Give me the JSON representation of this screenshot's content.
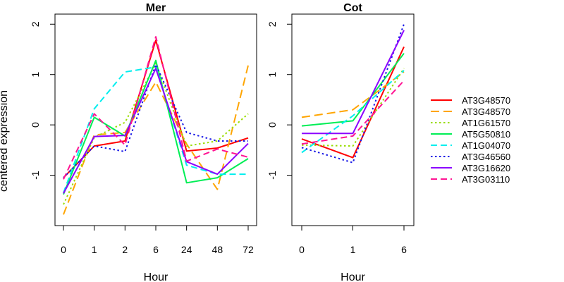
{
  "figure": {
    "ylabel": "centered expression",
    "xlabel": "Hour"
  },
  "chart_data": [
    {
      "type": "line",
      "title": "Mer",
      "categories": [
        "0",
        "1",
        "2",
        "6",
        "24",
        "48",
        "72"
      ],
      "xlabel": "Hour",
      "ylabel": "centered expression",
      "ylim": [
        -2,
        2.2
      ],
      "yticks": [
        -1,
        0,
        1,
        2
      ],
      "grid": false,
      "series": [
        {
          "name": "AT3G48570",
          "color": "#ff0000",
          "dash": "solid",
          "values": [
            -1.05,
            -0.42,
            -0.32,
            1.68,
            -0.52,
            -0.46,
            -0.26
          ]
        },
        {
          "name": "AT3G48570",
          "color": "#ffa500",
          "dash": "longdash",
          "values": [
            -1.78,
            -0.2,
            -0.15,
            0.85,
            -0.38,
            -1.28,
            1.18
          ]
        },
        {
          "name": "AT1G61570",
          "color": "#99dd00",
          "dash": "dotted",
          "values": [
            -1.58,
            -0.25,
            0.05,
            1.22,
            -0.42,
            -0.32,
            0.22
          ]
        },
        {
          "name": "AT5G50810",
          "color": "#00ee55",
          "dash": "solid",
          "values": [
            -1.38,
            0.15,
            -0.22,
            1.28,
            -1.15,
            -1.05,
            -0.67
          ]
        },
        {
          "name": "AT1G04070",
          "color": "#00eeee",
          "dash": "dashed",
          "values": [
            -1.35,
            0.32,
            1.05,
            1.15,
            -0.8,
            -0.98,
            -0.98
          ]
        },
        {
          "name": "AT3G46560",
          "color": "#1a1ae6",
          "dash": "dotted",
          "values": [
            -1.05,
            -0.42,
            -0.53,
            1.2,
            -0.15,
            -0.32,
            -0.32
          ]
        },
        {
          "name": "AT3G16620",
          "color": "#8b00ff",
          "dash": "solid",
          "values": [
            -1.36,
            -0.23,
            -0.21,
            1.12,
            -0.73,
            -0.98,
            -0.37
          ]
        },
        {
          "name": "AT3G03110",
          "color": "#ff1493",
          "dash": "dashed",
          "values": [
            -1.08,
            0.22,
            -0.4,
            1.75,
            -0.72,
            -0.48,
            -0.64
          ]
        }
      ]
    },
    {
      "type": "line",
      "title": "Cot",
      "categories": [
        "0",
        "1",
        "6"
      ],
      "xlabel": "Hour",
      "ylim": [
        -2,
        2.2
      ],
      "yticks": [
        -1,
        0,
        1,
        2
      ],
      "grid": false,
      "series": [
        {
          "name": "AT3G48570",
          "color": "#ff0000",
          "dash": "solid",
          "values": [
            -0.28,
            -0.65,
            1.55
          ]
        },
        {
          "name": "AT3G48570",
          "color": "#ffa500",
          "dash": "longdash",
          "values": [
            0.15,
            0.3,
            1.05
          ]
        },
        {
          "name": "AT1G61570",
          "color": "#99dd00",
          "dash": "dotted",
          "values": [
            -0.4,
            -0.42,
            1.12
          ]
        },
        {
          "name": "AT5G50810",
          "color": "#00ee55",
          "dash": "solid",
          "values": [
            -0.02,
            0.08,
            1.42
          ]
        },
        {
          "name": "AT1G04070",
          "color": "#00eeee",
          "dash": "dashed",
          "values": [
            -0.55,
            0.18,
            1.08
          ]
        },
        {
          "name": "AT3G46560",
          "color": "#1a1ae6",
          "dash": "dotted",
          "values": [
            -0.45,
            -0.75,
            2.0
          ]
        },
        {
          "name": "AT3G16620",
          "color": "#8b00ff",
          "dash": "solid",
          "values": [
            -0.17,
            -0.17,
            1.88
          ]
        },
        {
          "name": "AT3G03110",
          "color": "#ff1493",
          "dash": "dashed",
          "values": [
            -0.38,
            -0.22,
            0.88
          ]
        }
      ]
    }
  ],
  "legend": {
    "placement": "right",
    "entries": [
      {
        "label": "AT3G48570",
        "color": "#ff0000",
        "dash": "solid"
      },
      {
        "label": "AT3G48570",
        "color": "#ffa500",
        "dash": "longdash"
      },
      {
        "label": "AT1G61570",
        "color": "#99dd00",
        "dash": "dotted"
      },
      {
        "label": "AT5G50810",
        "color": "#00ee55",
        "dash": "solid"
      },
      {
        "label": "AT1G04070",
        "color": "#00eeee",
        "dash": "dashed"
      },
      {
        "label": "AT3G46560",
        "color": "#1a1ae6",
        "dash": "dotted"
      },
      {
        "label": "AT3G16620",
        "color": "#8b00ff",
        "dash": "solid"
      },
      {
        "label": "AT3G03110",
        "color": "#ff1493",
        "dash": "dashed"
      }
    ]
  }
}
